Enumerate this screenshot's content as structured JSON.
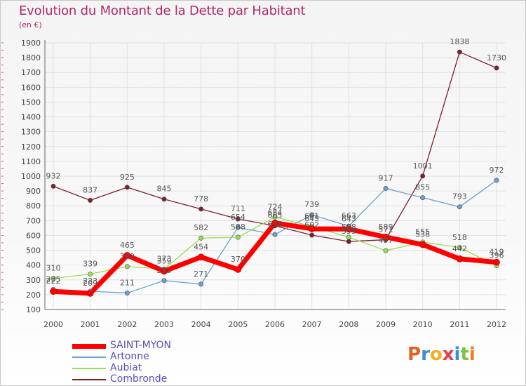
{
  "chart_data": {
    "type": "line",
    "title": "Evolution du Montant de la Dette par Habitant",
    "subtitle": "(en €)",
    "xlabel": "",
    "ylabel": "",
    "x": [
      "2000",
      "2001",
      "2002",
      "2003",
      "2004",
      "2005",
      "2006",
      "2007",
      "2008",
      "2009",
      "2010",
      "2011",
      "2012"
    ],
    "ylim": [
      100,
      1900
    ],
    "yticks": [
      100,
      200,
      300,
      400,
      500,
      600,
      700,
      800,
      900,
      1000,
      1100,
      1200,
      1300,
      1400,
      1500,
      1600,
      1700,
      1800,
      1900
    ],
    "grid": true,
    "legend_position": "bottom-left",
    "series": [
      {
        "name": "SAINT-MYON",
        "color": "#ff0000",
        "values": [
          222,
          209,
          465,
          359,
          454,
          370,
          684,
          645,
          643,
          589,
          538,
          442,
          419
        ]
      },
      {
        "name": "Artonne",
        "color": "#6a9fd0",
        "values": [
          235,
          223,
          211,
          295,
          271,
          654,
          606,
          739,
          663,
          917,
          855,
          793,
          972
        ]
      },
      {
        "name": "Aubiat",
        "color": "#99dd55",
        "values": [
          310,
          339,
          390,
          373,
          582,
          588,
          724,
          661,
          588,
          497,
          555,
          518,
          396
        ]
      },
      {
        "name": "Combronde",
        "color": "#7b1f2e",
        "values": [
          932,
          837,
          925,
          845,
          778,
          711,
          665,
          602,
          559,
          571,
          1001,
          1838,
          1730
        ]
      }
    ]
  },
  "logo_text": "Proxiti",
  "logo_colors": [
    "#e65f1f",
    "#3a8fd6",
    "#f2b11e",
    "#e83a4a",
    "#3a8fd6",
    "#7cc242",
    "#f07b23"
  ]
}
